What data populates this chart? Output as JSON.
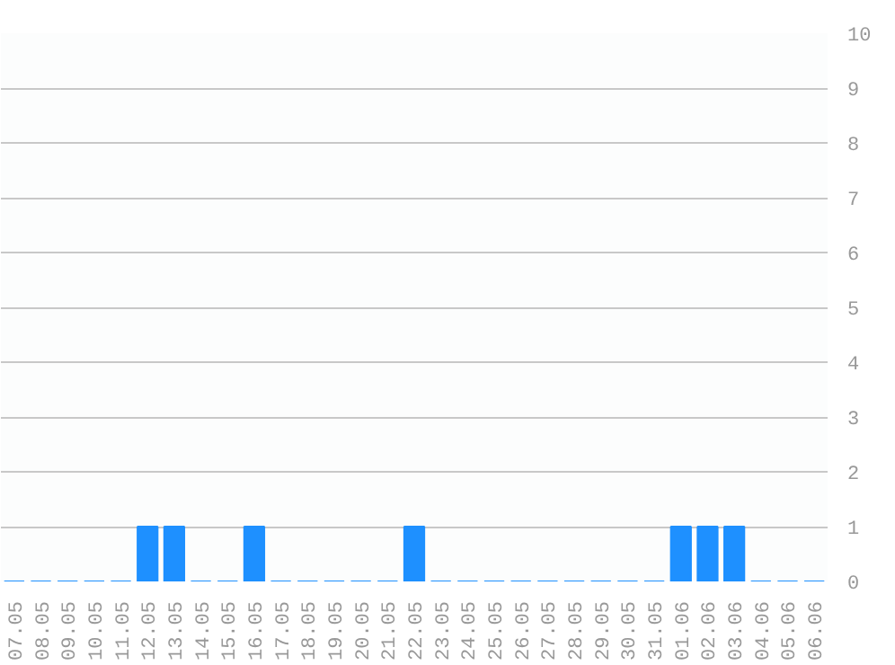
{
  "chart_data": {
    "type": "bar",
    "categories": [
      "07.05",
      "08.05",
      "09.05",
      "10.05",
      "11.05",
      "12.05",
      "13.05",
      "14.05",
      "15.05",
      "16.05",
      "17.05",
      "18.05",
      "19.05",
      "20.05",
      "21.05",
      "22.05",
      "23.05",
      "24.05",
      "25.05",
      "26.05",
      "27.05",
      "28.05",
      "29.05",
      "30.05",
      "31.05",
      "01.06",
      "02.06",
      "03.06",
      "04.06",
      "05.06",
      "06.06"
    ],
    "values": [
      0,
      0,
      0,
      0,
      0,
      1,
      1,
      0,
      0,
      1,
      0,
      0,
      0,
      0,
      0,
      1,
      0,
      0,
      0,
      0,
      0,
      0,
      0,
      0,
      0,
      1,
      1,
      1,
      0,
      0,
      0
    ],
    "color": "#1e90ff",
    "ylim": [
      0,
      10
    ],
    "yticks": [
      0,
      1,
      2,
      3,
      4,
      5,
      6,
      7,
      8,
      9,
      10
    ],
    "grid": "y"
  }
}
